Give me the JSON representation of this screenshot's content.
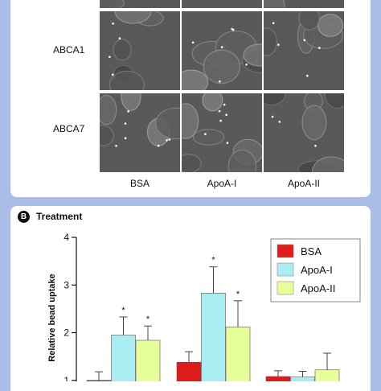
{
  "panel_a": {
    "rows": [
      {
        "label": ""
      },
      {
        "label": "ABCA1"
      },
      {
        "label": "ABCA7"
      }
    ],
    "columns": [
      "BSA",
      "ApoA-I",
      "ApoA-II"
    ]
  },
  "panel_b": {
    "letter": "B",
    "title": "Treatment"
  },
  "colors": {
    "background": "#a9bde6",
    "bsa": "#e01b1b",
    "apoa1": "#a9ecf2",
    "apoa2": "#e6ff9a",
    "brown": "#c8502a"
  },
  "chart_data": {
    "type": "bar",
    "ylabel": "Relative bead uptake",
    "ylim": [
      0,
      4
    ],
    "yticks": [
      "1",
      "2",
      "3",
      "4"
    ],
    "legend_position": "top-right",
    "series": [
      {
        "name": "BSA",
        "color": "#e01b1b",
        "values": [
          1.0,
          1.38,
          1.08
        ],
        "errors": [
          0.18,
          0.22,
          0.12
        ]
      },
      {
        "name": "ApoA-I",
        "color": "#a9ecf2",
        "values": [
          1.95,
          2.83,
          1.07
        ],
        "errors": [
          0.38,
          0.55,
          0.12
        ]
      },
      {
        "name": "ApoA-II",
        "color": "#e6ff9a",
        "values": [
          1.84,
          2.12,
          1.22
        ],
        "errors": [
          0.3,
          0.55,
          0.35
        ]
      }
    ],
    "annotations": [
      {
        "series": 1,
        "group": 0,
        "text": "*"
      },
      {
        "series": 2,
        "group": 0,
        "text": "*"
      },
      {
        "series": 1,
        "group": 1,
        "text": "*"
      },
      {
        "series": 2,
        "group": 1,
        "text": "*"
      }
    ]
  }
}
